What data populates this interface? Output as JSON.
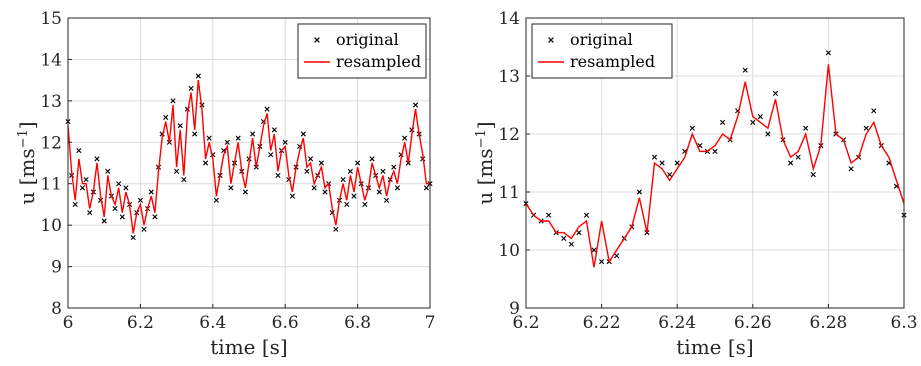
{
  "chart_data": [
    {
      "type": "line",
      "xlabel": "time [s]",
      "ylabel": "u [ms",
      "ylabel_exp": "−1",
      "ylabel_close": "]",
      "xlim": [
        6,
        7
      ],
      "ylim": [
        8,
        15
      ],
      "x_ticks": [
        "6",
        "6.2",
        "6.4",
        "6.6",
        "6.8",
        "7"
      ],
      "y_ticks": [
        "8",
        "9",
        "10",
        "11",
        "12",
        "13",
        "14",
        "15"
      ],
      "grid": true,
      "legend_position": "top-right",
      "series": [
        {
          "name": "original",
          "style": "markers",
          "marker": "x",
          "color": "#000000",
          "x": [
            6.0,
            6.01,
            6.02,
            6.03,
            6.04,
            6.05,
            6.06,
            6.07,
            6.08,
            6.09,
            6.1,
            6.11,
            6.12,
            6.13,
            6.14,
            6.15,
            6.16,
            6.17,
            6.18,
            6.19,
            6.2,
            6.21,
            6.22,
            6.23,
            6.24,
            6.25,
            6.26,
            6.27,
            6.28,
            6.29,
            6.3,
            6.31,
            6.32,
            6.33,
            6.34,
            6.35,
            6.36,
            6.37,
            6.38,
            6.39,
            6.4,
            6.41,
            6.42,
            6.43,
            6.44,
            6.45,
            6.46,
            6.47,
            6.48,
            6.49,
            6.5,
            6.51,
            6.52,
            6.53,
            6.54,
            6.55,
            6.56,
            6.57,
            6.58,
            6.59,
            6.6,
            6.61,
            6.62,
            6.63,
            6.64,
            6.65,
            6.66,
            6.67,
            6.68,
            6.69,
            6.7,
            6.71,
            6.72,
            6.73,
            6.74,
            6.75,
            6.76,
            6.77,
            6.78,
            6.79,
            6.8,
            6.81,
            6.82,
            6.83,
            6.84,
            6.85,
            6.86,
            6.87,
            6.88,
            6.89,
            6.9,
            6.91,
            6.92,
            6.93,
            6.94,
            6.95,
            6.96,
            6.97,
            6.98,
            6.99,
            7.0
          ],
          "y": [
            12.5,
            11.2,
            10.5,
            11.8,
            10.9,
            11.1,
            10.3,
            10.8,
            11.6,
            10.6,
            10.1,
            11.3,
            10.7,
            10.4,
            11.0,
            10.2,
            10.9,
            10.5,
            9.7,
            10.3,
            10.6,
            9.9,
            10.4,
            10.8,
            10.2,
            11.4,
            12.2,
            12.6,
            12.0,
            13.0,
            11.3,
            12.4,
            11.1,
            12.8,
            13.3,
            12.2,
            13.6,
            12.9,
            11.5,
            12.1,
            11.7,
            10.6,
            11.2,
            11.8,
            12.0,
            10.9,
            11.5,
            12.1,
            11.3,
            10.8,
            11.6,
            12.2,
            11.4,
            11.9,
            12.5,
            12.8,
            11.7,
            12.3,
            11.2,
            11.8,
            12.0,
            11.1,
            10.7,
            11.4,
            11.9,
            12.2,
            11.3,
            11.6,
            10.9,
            11.2,
            11.5,
            10.8,
            11.0,
            10.3,
            9.9,
            10.6,
            11.1,
            10.5,
            11.3,
            10.7,
            11.5,
            11.0,
            10.5,
            10.9,
            11.6,
            11.2,
            10.8,
            11.3,
            10.6,
            11.1,
            11.4,
            10.9,
            11.7,
            12.1,
            11.5,
            12.3,
            12.9,
            12.2,
            11.6,
            10.9,
            11.0
          ]
        },
        {
          "name": "resampled",
          "style": "line",
          "color": "#ff0000",
          "x": [
            6.0,
            6.01,
            6.02,
            6.03,
            6.04,
            6.05,
            6.06,
            6.07,
            6.08,
            6.09,
            6.1,
            6.11,
            6.12,
            6.13,
            6.14,
            6.15,
            6.16,
            6.17,
            6.18,
            6.19,
            6.2,
            6.21,
            6.22,
            6.23,
            6.24,
            6.25,
            6.26,
            6.27,
            6.28,
            6.29,
            6.3,
            6.31,
            6.32,
            6.33,
            6.34,
            6.35,
            6.36,
            6.37,
            6.38,
            6.39,
            6.4,
            6.41,
            6.42,
            6.43,
            6.44,
            6.45,
            6.46,
            6.47,
            6.48,
            6.49,
            6.5,
            6.51,
            6.52,
            6.53,
            6.54,
            6.55,
            6.56,
            6.57,
            6.58,
            6.59,
            6.6,
            6.61,
            6.62,
            6.63,
            6.64,
            6.65,
            6.66,
            6.67,
            6.68,
            6.69,
            6.7,
            6.71,
            6.72,
            6.73,
            6.74,
            6.75,
            6.76,
            6.77,
            6.78,
            6.79,
            6.8,
            6.81,
            6.82,
            6.83,
            6.84,
            6.85,
            6.86,
            6.87,
            6.88,
            6.89,
            6.9,
            6.91,
            6.92,
            6.93,
            6.94,
            6.95,
            6.96,
            6.97,
            6.98,
            6.99,
            7.0
          ],
          "y": [
            12.4,
            11.3,
            10.6,
            11.6,
            11.0,
            11.0,
            10.4,
            10.8,
            11.5,
            10.7,
            10.2,
            11.2,
            10.7,
            10.5,
            10.9,
            10.3,
            10.8,
            10.5,
            9.8,
            10.3,
            10.5,
            10.0,
            10.4,
            10.7,
            10.3,
            11.3,
            12.1,
            12.5,
            12.0,
            12.9,
            11.4,
            12.3,
            11.2,
            12.7,
            13.2,
            12.3,
            13.5,
            12.8,
            11.6,
            12.0,
            11.6,
            10.7,
            11.2,
            11.7,
            11.9,
            11.0,
            11.5,
            12.0,
            11.3,
            10.9,
            11.5,
            12.1,
            11.4,
            11.9,
            12.4,
            12.7,
            11.8,
            12.2,
            11.3,
            11.8,
            11.9,
            11.2,
            10.8,
            11.4,
            11.8,
            12.1,
            11.4,
            11.5,
            11.0,
            11.2,
            11.4,
            10.9,
            11.0,
            10.4,
            10.0,
            10.6,
            11.0,
            10.6,
            11.2,
            10.8,
            11.4,
            11.0,
            10.6,
            10.9,
            11.5,
            11.2,
            10.9,
            11.2,
            10.7,
            11.1,
            11.3,
            11.0,
            11.6,
            12.0,
            11.5,
            12.2,
            12.8,
            12.2,
            11.7,
            11.0,
            11.0
          ]
        }
      ]
    },
    {
      "type": "line",
      "xlabel": "time [s]",
      "ylabel": "u [ms",
      "ylabel_exp": "−1",
      "ylabel_close": "]",
      "xlim": [
        6.2,
        6.3
      ],
      "ylim": [
        9,
        14
      ],
      "x_ticks": [
        "6.2",
        "6.22",
        "6.24",
        "6.26",
        "6.28",
        "6.3"
      ],
      "y_ticks": [
        "9",
        "10",
        "11",
        "12",
        "13",
        "14"
      ],
      "grid": true,
      "legend_position": "top-left",
      "series": [
        {
          "name": "original",
          "style": "markers",
          "marker": "x",
          "color": "#000000",
          "x": [
            6.2,
            6.202,
            6.204,
            6.206,
            6.208,
            6.21,
            6.212,
            6.214,
            6.216,
            6.218,
            6.22,
            6.222,
            6.224,
            6.226,
            6.228,
            6.23,
            6.232,
            6.234,
            6.236,
            6.238,
            6.24,
            6.242,
            6.244,
            6.246,
            6.248,
            6.25,
            6.252,
            6.254,
            6.256,
            6.258,
            6.26,
            6.262,
            6.264,
            6.266,
            6.268,
            6.27,
            6.272,
            6.274,
            6.276,
            6.278,
            6.28,
            6.282,
            6.284,
            6.286,
            6.288,
            6.29,
            6.292,
            6.294,
            6.296,
            6.298,
            6.3
          ],
          "y": [
            10.8,
            10.6,
            10.5,
            10.6,
            10.3,
            10.2,
            10.1,
            10.3,
            10.6,
            10.0,
            9.8,
            9.8,
            9.9,
            10.2,
            10.4,
            11.0,
            10.3,
            11.6,
            11.5,
            11.3,
            11.5,
            11.7,
            12.1,
            11.8,
            11.7,
            11.7,
            12.2,
            11.9,
            12.4,
            13.1,
            12.2,
            12.3,
            12.0,
            12.7,
            11.9,
            11.5,
            11.6,
            12.1,
            11.3,
            11.8,
            13.4,
            12.0,
            11.9,
            11.4,
            11.6,
            12.1,
            12.4,
            11.8,
            11.5,
            11.1,
            10.6
          ]
        },
        {
          "name": "resampled",
          "style": "line",
          "color": "#ff0000",
          "x": [
            6.2,
            6.202,
            6.204,
            6.206,
            6.208,
            6.21,
            6.212,
            6.214,
            6.216,
            6.218,
            6.22,
            6.222,
            6.224,
            6.226,
            6.228,
            6.23,
            6.232,
            6.234,
            6.236,
            6.238,
            6.24,
            6.242,
            6.244,
            6.246,
            6.248,
            6.25,
            6.252,
            6.254,
            6.256,
            6.258,
            6.26,
            6.262,
            6.264,
            6.266,
            6.268,
            6.27,
            6.272,
            6.274,
            6.276,
            6.278,
            6.28,
            6.282,
            6.284,
            6.286,
            6.288,
            6.29,
            6.292,
            6.294,
            6.296,
            6.298,
            6.3
          ],
          "y": [
            10.8,
            10.6,
            10.5,
            10.5,
            10.3,
            10.3,
            10.2,
            10.4,
            10.5,
            9.7,
            10.5,
            9.8,
            10.0,
            10.2,
            10.4,
            10.9,
            10.3,
            11.5,
            11.4,
            11.2,
            11.4,
            11.6,
            12.0,
            11.7,
            11.7,
            11.8,
            12.0,
            11.9,
            12.3,
            12.9,
            12.3,
            12.2,
            12.1,
            12.6,
            11.9,
            11.6,
            11.7,
            12.0,
            11.4,
            11.8,
            13.2,
            12.0,
            11.9,
            11.5,
            11.6,
            12.0,
            12.2,
            11.8,
            11.6,
            11.2,
            10.8
          ]
        }
      ]
    }
  ]
}
